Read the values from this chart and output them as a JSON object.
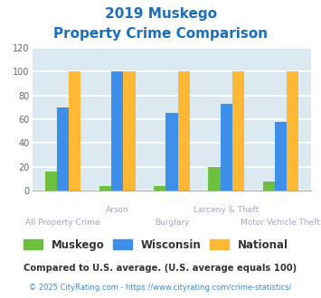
{
  "title_line1": "2019 Muskego",
  "title_line2": "Property Crime Comparison",
  "title_color": "#1a6fbd",
  "categories": [
    "All Property Crime",
    "Arson",
    "Burglary",
    "Larceny & Theft",
    "Motor Vehicle Theft"
  ],
  "xlabel_top": [
    "",
    "Arson",
    "",
    "Larceny & Theft",
    ""
  ],
  "xlabel_bot": [
    "All Property Crime",
    "",
    "Burglary",
    "",
    "Motor Vehicle Theft"
  ],
  "muskego": [
    16,
    4,
    4,
    20,
    8
  ],
  "wisconsin": [
    70,
    100,
    65,
    73,
    58
  ],
  "national": [
    100,
    100,
    100,
    100,
    100
  ],
  "color_muskego": "#6dbf40",
  "color_wisconsin": "#3d8fea",
  "color_national": "#ffb833",
  "ylim": [
    0,
    120
  ],
  "yticks": [
    0,
    20,
    40,
    60,
    80,
    100,
    120
  ],
  "bar_width": 0.22,
  "background_color": "#dde9f0",
  "grid_color": "#ffffff",
  "axis_label_color": "#b0a0c0",
  "footnote1": "Compared to U.S. average. (U.S. average equals 100)",
  "footnote2": "© 2025 CityRating.com - https://www.cityrating.com/crime-statistics/",
  "footnote1_color": "#333333",
  "footnote2_color": "#4488cc",
  "legend_labels": [
    "Muskego",
    "Wisconsin",
    "National"
  ],
  "legend_text_color": "#333333"
}
